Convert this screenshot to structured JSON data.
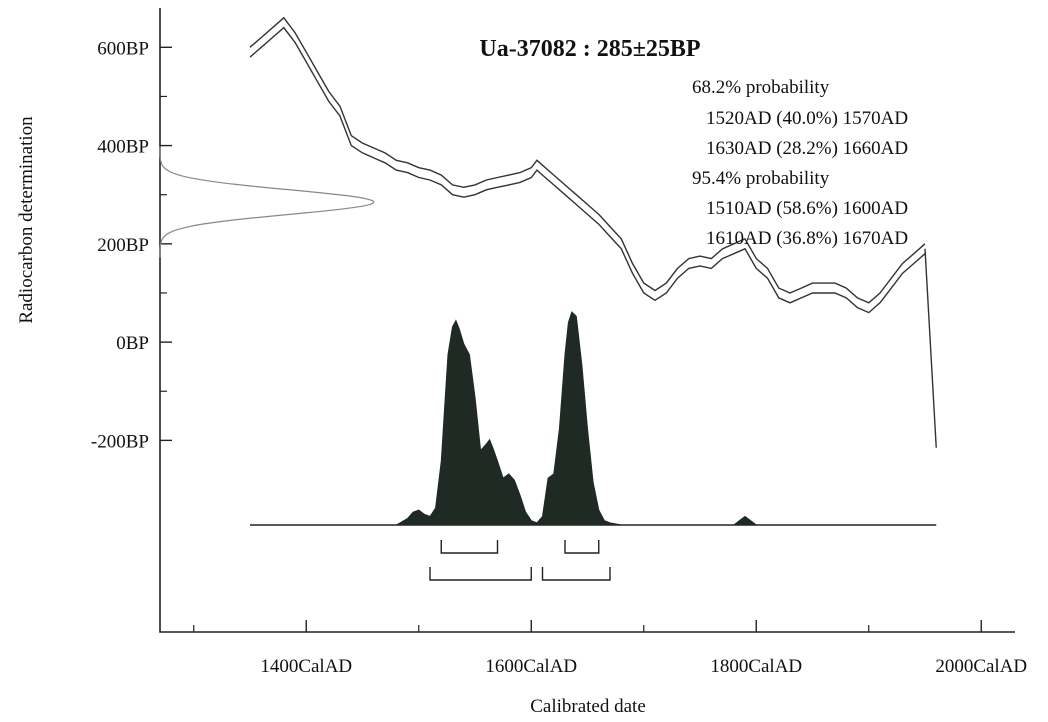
{
  "chart_data": {
    "type": "area",
    "title": "Ua-37082 : 285±25BP",
    "xlabel": "Calibrated date",
    "ylabel": "Radiocarbon determination",
    "xlim": [
      1270,
      2030
    ],
    "ylim": [
      -590,
      680
    ],
    "grid": false,
    "x_ticks": [
      {
        "value": 1400,
        "label": "1400CalAD"
      },
      {
        "value": 1600,
        "label": "1600CalAD"
      },
      {
        "value": 1800,
        "label": "1800CalAD"
      },
      {
        "value": 2000,
        "label": "2000CalAD"
      }
    ],
    "x_minor_ticks": [
      1300,
      1500,
      1700,
      1900
    ],
    "y_ticks": [
      {
        "value": 600,
        "label": "600BP"
      },
      {
        "value": 400,
        "label": "400BP"
      },
      {
        "value": 200,
        "label": "200BP"
      },
      {
        "value": 0,
        "label": "0BP"
      },
      {
        "value": -200,
        "label": "-200BP"
      }
    ],
    "y_minor_ticks": [
      500,
      300,
      100,
      -100
    ],
    "measurement": {
      "age_bp": 285,
      "error": 25
    },
    "annotations": {
      "p68_heading": "68.2% probability",
      "p68_ranges": [
        "1520AD (40.0%) 1570AD",
        "1630AD (28.2%) 1660AD"
      ],
      "p95_heading": "95.4% probability",
      "p95_ranges": [
        "1510AD (58.6%) 1600AD",
        "1610AD (36.8%) 1670AD"
      ]
    },
    "range_brackets": {
      "p68": [
        [
          1520,
          1570
        ],
        [
          1630,
          1660
        ]
      ],
      "p95": [
        [
          1510,
          1600
        ],
        [
          1610,
          1670
        ]
      ]
    },
    "calibration_curve": {
      "x": [
        1350,
        1360,
        1370,
        1380,
        1390,
        1400,
        1410,
        1420,
        1430,
        1440,
        1450,
        1460,
        1470,
        1480,
        1490,
        1500,
        1510,
        1520,
        1530,
        1540,
        1550,
        1560,
        1570,
        1580,
        1590,
        1600,
        1605,
        1610,
        1620,
        1630,
        1640,
        1650,
        1660,
        1670,
        1680,
        1690,
        1700,
        1710,
        1720,
        1730,
        1740,
        1750,
        1760,
        1770,
        1780,
        1790,
        1800,
        1810,
        1820,
        1830,
        1840,
        1850,
        1860,
        1870,
        1880,
        1890,
        1900,
        1910,
        1920,
        1930,
        1940,
        1950
      ],
      "y": [
        590,
        610,
        630,
        650,
        620,
        580,
        540,
        500,
        470,
        410,
        395,
        385,
        375,
        360,
        355,
        345,
        340,
        330,
        310,
        305,
        310,
        320,
        325,
        330,
        335,
        345,
        360,
        350,
        330,
        310,
        290,
        270,
        250,
        225,
        200,
        150,
        110,
        95,
        110,
        140,
        160,
        165,
        160,
        180,
        190,
        200,
        160,
        140,
        100,
        90,
        100,
        110,
        110,
        110,
        100,
        80,
        70,
        90,
        120,
        150,
        170,
        190
      ]
    },
    "curve_tail": {
      "x": [
        1950,
        1960
      ],
      "y": [
        190,
        -215
      ]
    },
    "density_x_range": [
      1350,
      1960
    ],
    "measurement_curve_x_range": [
      1270,
      1460
    ],
    "density": {
      "x": [
        1480,
        1490,
        1495,
        1500,
        1505,
        1510,
        1515,
        1520,
        1523,
        1526,
        1530,
        1533,
        1536,
        1540,
        1545,
        1550,
        1555,
        1560,
        1563,
        1566,
        1570,
        1575,
        1580,
        1585,
        1590,
        1595,
        1600,
        1605,
        1610,
        1615,
        1620,
        1625,
        1630,
        1633,
        1636,
        1640,
        1645,
        1650,
        1655,
        1660,
        1665,
        1670,
        1680,
        1700,
        1780,
        1785,
        1790,
        1795,
        1800
      ],
      "y": [
        0.0,
        0.03,
        0.06,
        0.07,
        0.05,
        0.04,
        0.08,
        0.3,
        0.55,
        0.8,
        0.93,
        0.96,
        0.92,
        0.85,
        0.8,
        0.6,
        0.35,
        0.38,
        0.4,
        0.36,
        0.3,
        0.22,
        0.24,
        0.21,
        0.14,
        0.06,
        0.02,
        0.01,
        0.04,
        0.22,
        0.24,
        0.45,
        0.8,
        0.95,
        1.0,
        0.98,
        0.75,
        0.45,
        0.2,
        0.07,
        0.02,
        0.01,
        0.0,
        0.0,
        0.0,
        0.02,
        0.04,
        0.02,
        0.0
      ]
    }
  }
}
